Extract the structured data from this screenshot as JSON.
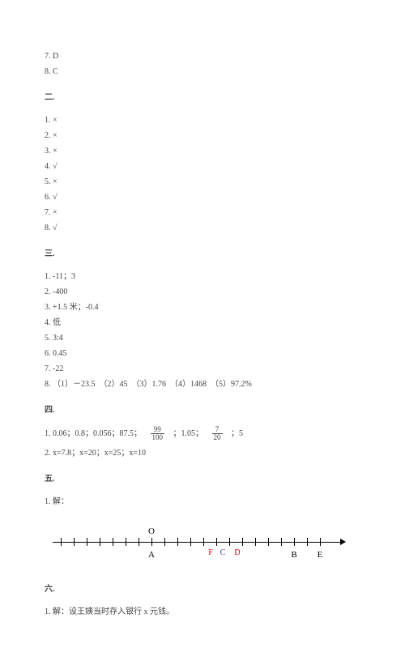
{
  "mc": {
    "a": "7. D",
    "b": "8. C"
  },
  "s2": {
    "h": "二.",
    "i": [
      "1. ×",
      "2. ×",
      "3. ×",
      "4. √",
      "5. ×",
      "6. √",
      "7. ×",
      "8. √"
    ]
  },
  "s3": {
    "h": "三.",
    "i": [
      "1. -11；3",
      "2. -400",
      "3. +1.5 米；-0.4",
      "4. 低",
      "5. 3:4",
      "6. 0.45",
      "7. -22",
      "8. （1）－23.5　（2）45　（3）1.76　（4）1468　（5）97.2%"
    ]
  },
  "s4": {
    "h": "四.",
    "l1a": "1. 0.06；0.8；0.056；87.5；",
    "f1n": "99",
    "f1d": "100",
    "l1b": "；1.05；",
    "f2n": "7",
    "f2d": "20",
    "l1c": "；5",
    "l2": "2. x=7.8；x=20；x=25；x=10"
  },
  "s5": {
    "h": "五.",
    "l": "1. 解："
  },
  "nl": {
    "O": "O",
    "A": "A",
    "B": "B",
    "E": "E",
    "F": "F",
    "C": "C",
    "D": "D",
    "ticks": [
      10,
      26,
      42,
      58,
      74,
      90,
      106,
      122,
      138,
      154,
      170,
      186,
      202,
      218,
      234,
      250,
      266,
      282,
      298,
      314,
      330
    ],
    "pO": 122,
    "pA": 122,
    "pF": 195,
    "pC": 210,
    "pD": 228,
    "pB": 298,
    "pE": 330
  },
  "s6": {
    "h": "六.",
    "l": "1. 解：设王姨当时存入银行 x 元钱。"
  }
}
